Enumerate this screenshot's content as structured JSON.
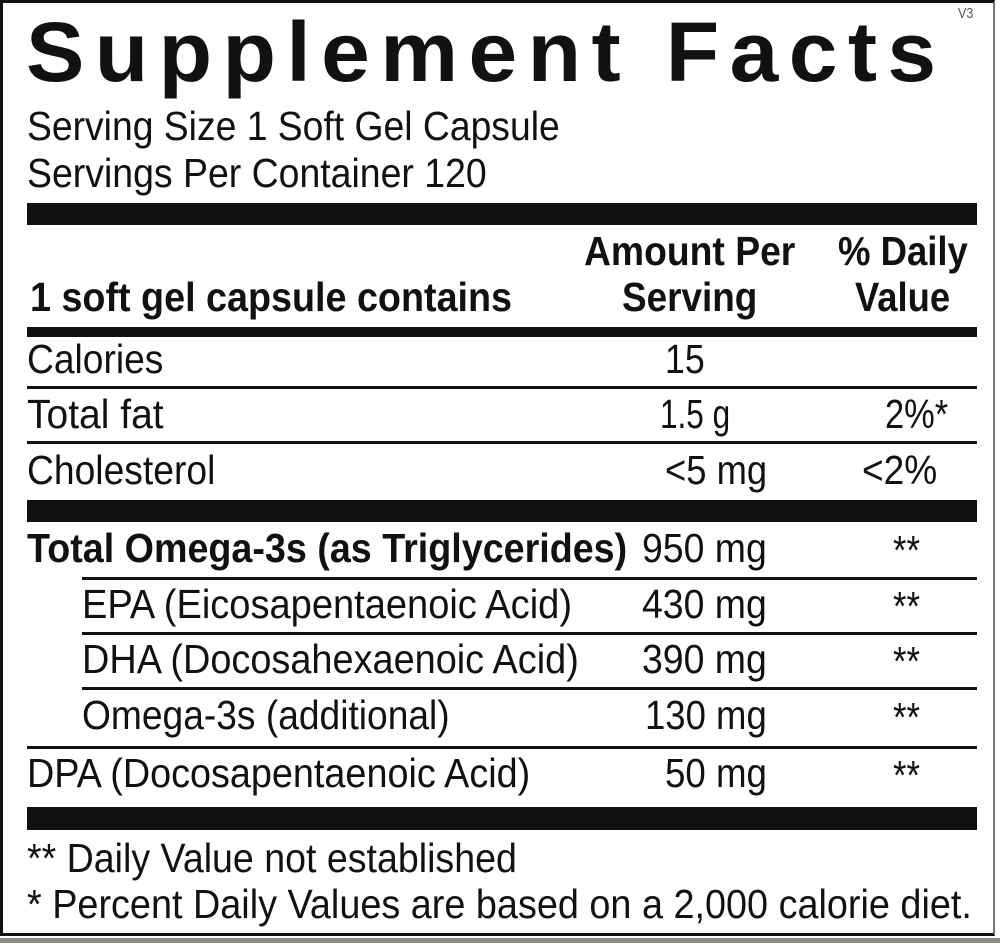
{
  "title": "Supplement Facts",
  "version": "V3",
  "serving_size": "Serving Size 1 Soft Gel Capsule",
  "servings_per_container": "Servings Per Container 120",
  "header": {
    "contains": "1 soft gel capsule contains",
    "amount_line1": "Amount Per",
    "amount_line2": "Serving",
    "dv_line1": "% Daily",
    "dv_line2": "Value"
  },
  "rows": [
    {
      "name": "Calories",
      "amount": "15",
      "dv": ""
    },
    {
      "name": "Total fat",
      "amount": "1.5 g",
      "dv": "2%*"
    },
    {
      "name": "Cholesterol",
      "amount": "<5 mg",
      "dv": "<2%"
    },
    {
      "name": "Total Omega-3s (as Triglycerides)",
      "amount": "950 mg",
      "dv": "**"
    },
    {
      "name": "EPA (Eicosapentaenoic Acid)",
      "amount": "430 mg",
      "dv": "**"
    },
    {
      "name": "DHA (Docosahexaenoic Acid)",
      "amount": "390 mg",
      "dv": "**"
    },
    {
      "name": "Omega-3s (additional)",
      "amount": "130 mg",
      "dv": "**"
    },
    {
      "name": "DPA (Docosapentaenoic Acid)",
      "amount": "50 mg",
      "dv": "**"
    }
  ],
  "footnotes": [
    "** Daily Value not established",
    "* Percent Daily Values are based on a 2,000 calorie diet."
  ]
}
